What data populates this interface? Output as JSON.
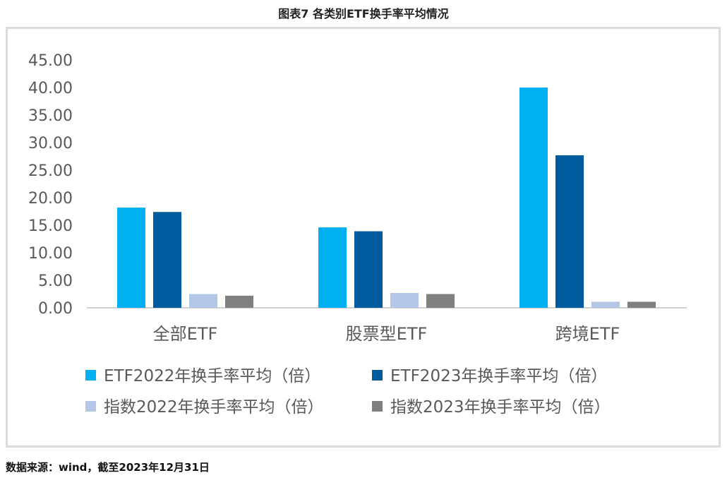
{
  "page": {
    "title": "图表7  各类别ETF换手率平均情况",
    "source": "数据来源：wind，截至2023年12月31日"
  },
  "chart_data": {
    "type": "bar",
    "categories": [
      "全部ETF",
      "股票型ETF",
      "跨境ETF"
    ],
    "series": [
      {
        "name": "ETF2022年换手率平均（倍）",
        "color": "#00b0f0",
        "values": [
          18.2,
          14.6,
          40.0
        ]
      },
      {
        "name": "ETF2023年换手率平均（倍）",
        "color": "#005a9e",
        "values": [
          17.4,
          13.9,
          27.7
        ]
      },
      {
        "name": "指数2022年换手率平均（倍）",
        "color": "#b4c7e7",
        "values": [
          2.5,
          2.7,
          1.1
        ]
      },
      {
        "name": "指数2023年换手率平均（倍）",
        "color": "#808080",
        "values": [
          2.2,
          2.5,
          1.1
        ]
      }
    ],
    "yticks": [
      "0.00",
      "5.00",
      "10.00",
      "15.00",
      "20.00",
      "25.00",
      "30.00",
      "35.00",
      "40.00",
      "45.00"
    ],
    "ylim": [
      0,
      45
    ],
    "grid": false,
    "legend_position": "bottom"
  }
}
